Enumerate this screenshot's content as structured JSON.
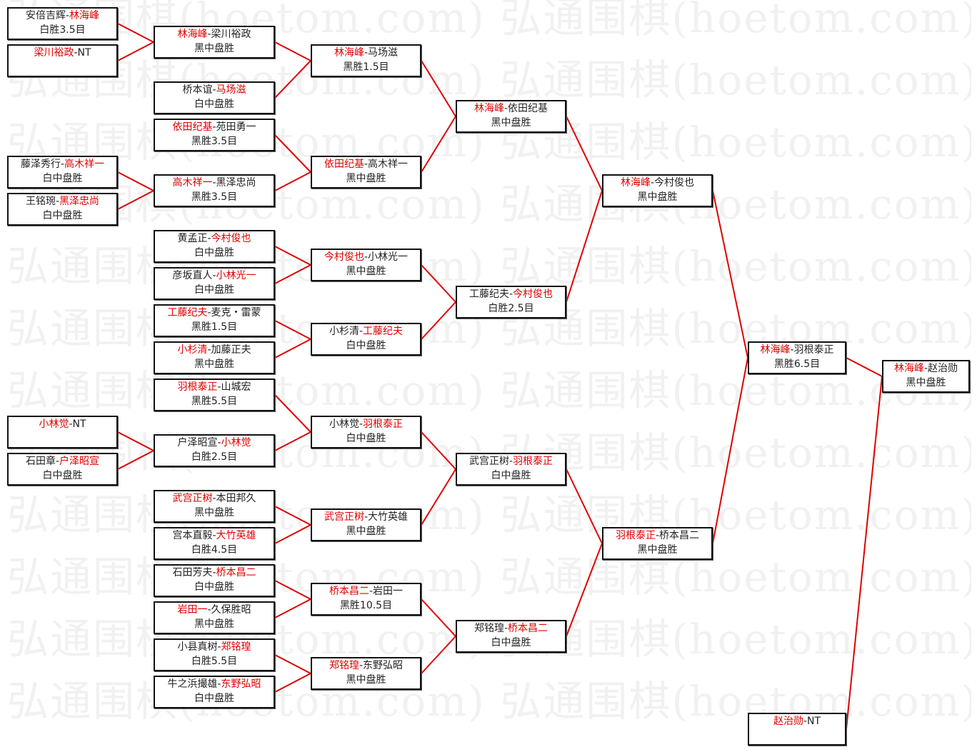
{
  "watermark": "弘通围棋(hoetom.com)",
  "separator": "-",
  "colors": {
    "winner": "#e00000",
    "line": "#e00000",
    "border": "#111111"
  },
  "matches": [
    {
      "p1": "安倍吉辉",
      "p2": "林海峰",
      "winner": 2,
      "result": "白胜3.5目"
    },
    {
      "p1": "梁川裕政",
      "p2": "NT",
      "winner": 1,
      "result": ""
    },
    {
      "p1": "林海峰",
      "p2": "梁川裕政",
      "winner": 1,
      "result": "黑中盘胜"
    },
    {
      "p1": "桥本谊",
      "p2": "马场滋",
      "winner": 2,
      "result": "白中盘胜"
    },
    {
      "p1": "林海峰",
      "p2": "马场滋",
      "winner": 1,
      "result": "黑胜1.5目"
    },
    {
      "p1": "依田纪基",
      "p2": "苑田勇一",
      "winner": 1,
      "result": "黑胜3.5目"
    },
    {
      "p1": "藤泽秀行",
      "p2": "高木祥一",
      "winner": 2,
      "result": "白中盘胜"
    },
    {
      "p1": "王铭琬",
      "p2": "黑泽忠尚",
      "winner": 2,
      "result": "白中盘胜"
    },
    {
      "p1": "高木祥一",
      "p2": "黑泽忠尚",
      "winner": 1,
      "result": "黑胜3.5目"
    },
    {
      "p1": "依田纪基",
      "p2": "高木祥一",
      "winner": 1,
      "result": "黑中盘胜"
    },
    {
      "p1": "林海峰",
      "p2": "依田纪基",
      "winner": 1,
      "result": "黑中盘胜"
    },
    {
      "p1": "黄孟正",
      "p2": "今村俊也",
      "winner": 2,
      "result": "白中盘胜"
    },
    {
      "p1": "彦坂直人",
      "p2": "小林光一",
      "winner": 2,
      "result": "白中盘胜"
    },
    {
      "p1": "今村俊也",
      "p2": "小林光一",
      "winner": 1,
      "result": "黑中盘胜"
    },
    {
      "p1": "工藤纪夫",
      "p2": "麦克・雷蒙",
      "winner": 1,
      "result": "黑胜1.5目"
    },
    {
      "p1": "小杉清",
      "p2": "加藤正夫",
      "winner": 1,
      "result": "黑中盘胜"
    },
    {
      "p1": "小杉清",
      "p2": "工藤纪夫",
      "winner": 2,
      "result": "白中盘胜"
    },
    {
      "p1": "工藤纪夫",
      "p2": "今村俊也",
      "winner": 2,
      "result": "白胜2.5目"
    },
    {
      "p1": "林海峰",
      "p2": "今村俊也",
      "winner": 1,
      "result": "黑中盘胜"
    },
    {
      "p1": "羽根泰正",
      "p2": "山城宏",
      "winner": 1,
      "result": "黑胜5.5目"
    },
    {
      "p1": "小林觉",
      "p2": "NT",
      "winner": 1,
      "result": ""
    },
    {
      "p1": "石田章",
      "p2": "户泽昭宣",
      "winner": 2,
      "result": "白中盘胜"
    },
    {
      "p1": "户泽昭宣",
      "p2": "小林觉",
      "winner": 2,
      "result": "白胜2.5目"
    },
    {
      "p1": "小林觉",
      "p2": "羽根泰正",
      "winner": 2,
      "result": "白中盘胜"
    },
    {
      "p1": "武宫正树",
      "p2": "本田邦久",
      "winner": 1,
      "result": "黑中盘胜"
    },
    {
      "p1": "宫本直毅",
      "p2": "大竹英雄",
      "winner": 2,
      "result": "白胜4.5目"
    },
    {
      "p1": "武宫正树",
      "p2": "大竹英雄",
      "winner": 1,
      "result": "黑中盘胜"
    },
    {
      "p1": "武宫正树",
      "p2": "羽根泰正",
      "winner": 2,
      "result": "白中盘胜"
    },
    {
      "p1": "石田芳夫",
      "p2": "桥本昌二",
      "winner": 2,
      "result": "白中盘胜"
    },
    {
      "p1": "岩田一",
      "p2": "久保胜昭",
      "winner": 1,
      "result": "黑中盘胜"
    },
    {
      "p1": "桥本昌二",
      "p2": "岩田一",
      "winner": 1,
      "result": "黑胜10.5目"
    },
    {
      "p1": "小县真树",
      "p2": "郑铭瑝",
      "winner": 2,
      "result": "白胜5.5目"
    },
    {
      "p1": "牛之浜撮雄",
      "p2": "东野弘昭",
      "winner": 2,
      "result": "白中盘胜"
    },
    {
      "p1": "郑铭瑝",
      "p2": "东野弘昭",
      "winner": 1,
      "result": "黑中盘胜"
    },
    {
      "p1": "郑铭瑝",
      "p2": "桥本昌二",
      "winner": 2,
      "result": "白中盘胜"
    },
    {
      "p1": "羽根泰正",
      "p2": "桥本昌二",
      "winner": 1,
      "result": "黑中盘胜"
    },
    {
      "p1": "林海峰",
      "p2": "羽根泰正",
      "winner": 1,
      "result": "黑胜6.5目"
    },
    {
      "p1": "赵治勋",
      "p2": "NT",
      "winner": 1,
      "result": ""
    },
    {
      "p1": "林海峰",
      "p2": "赵治勋",
      "winner": 1,
      "result": "黑中盘胜"
    }
  ]
}
